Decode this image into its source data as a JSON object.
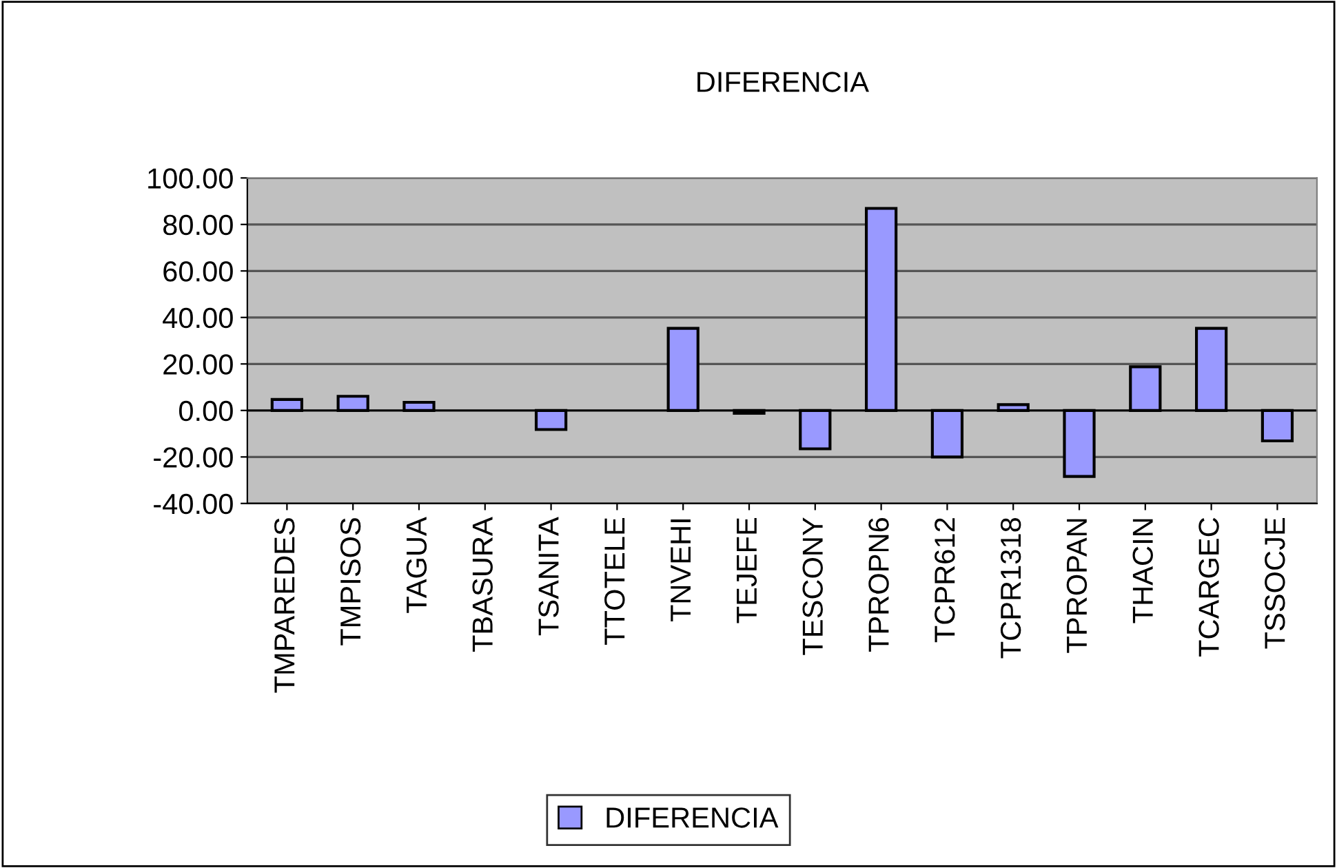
{
  "chart_data": {
    "type": "bar",
    "title": "DIFERENCIA",
    "categories": [
      "TMPAREDES",
      "TMPISOS",
      "TAGUA",
      "TBASURA",
      "TSANITA",
      "TTOTELE",
      "TNVEHI",
      "TEJEFE",
      "TESCONY",
      "TPROPN6",
      "TCPR612",
      "TCPR1318",
      "TPROPAN",
      "THACIN",
      "TCARGEC",
      "TSSOCJE"
    ],
    "series": [
      {
        "name": "DIFERENCIA",
        "color": "#9999ff",
        "values": [
          4.7,
          6.1,
          3.5,
          null,
          -8.2,
          null,
          35.3,
          -1.2,
          -16.5,
          86.9,
          -20,
          2.5,
          -28.4,
          18.8,
          35.3,
          -13.1
        ]
      }
    ],
    "ylim": [
      -40,
      100
    ],
    "yticks": [
      {
        "value": -40,
        "label": "-40.00"
      },
      {
        "value": -20,
        "label": "-20.00"
      },
      {
        "value": 0,
        "label": "0.00"
      },
      {
        "value": 20,
        "label": "20.00"
      },
      {
        "value": 40,
        "label": "40.00"
      },
      {
        "value": 60,
        "label": "60.00"
      },
      {
        "value": 80,
        "label": "80.00"
      },
      {
        "value": 100,
        "label": "100.00"
      }
    ],
    "grid": "y",
    "legend": "bottom"
  }
}
